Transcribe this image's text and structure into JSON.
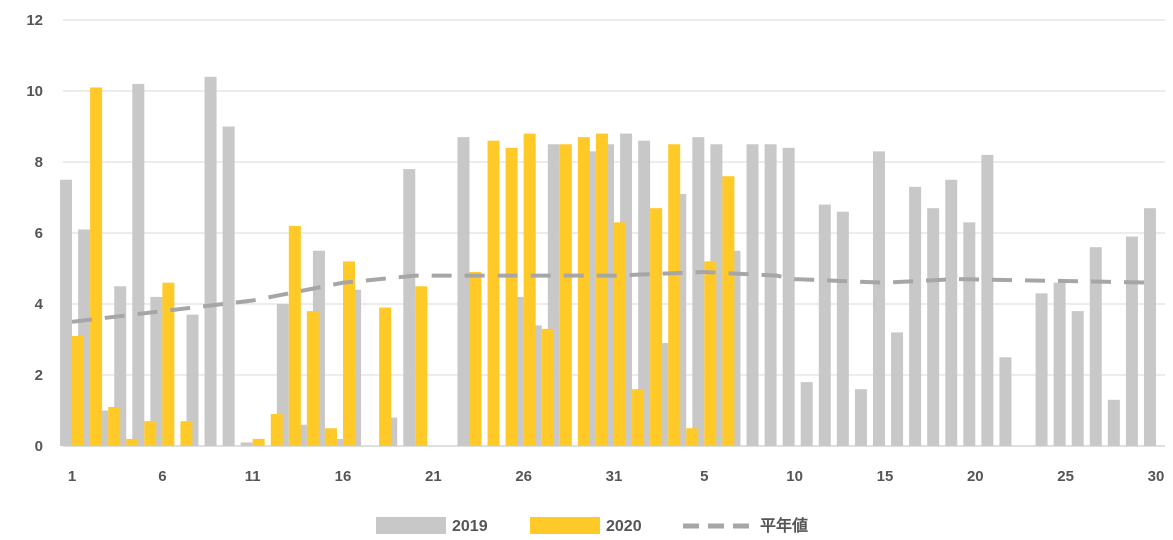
{
  "chart_data": {
    "type": "bar",
    "title": "",
    "xlabel": "",
    "ylabel": "",
    "ylim": [
      0,
      12
    ],
    "yticks": [
      0,
      2,
      4,
      6,
      8,
      10,
      12
    ],
    "grid": true,
    "legend_position": "bottom",
    "x_tick_labels": [
      "1",
      "6",
      "11",
      "16",
      "21",
      "26",
      "31",
      "5",
      "10",
      "15",
      "20",
      "25",
      "30"
    ],
    "x_tick_indices": [
      0,
      5,
      10,
      15,
      20,
      25,
      30,
      35,
      40,
      45,
      50,
      55,
      60
    ],
    "category_count": 61,
    "series": [
      {
        "name": "2019",
        "type": "bar",
        "color": "#c8c8c8",
        "values": [
          7.5,
          6.1,
          1.0,
          4.5,
          10.2,
          4.2,
          0,
          3.7,
          10.4,
          9.0,
          0.1,
          0,
          4.0,
          0.6,
          5.5,
          0.2,
          4.4,
          0,
          0.8,
          7.8,
          0,
          0,
          8.7,
          0,
          0,
          4.2,
          3.4,
          8.5,
          0,
          8.3,
          8.5,
          8.8,
          8.6,
          2.9,
          7.1,
          8.7,
          8.5,
          5.5,
          8.5,
          8.5,
          8.4,
          1.8,
          6.8,
          6.6,
          1.6,
          8.3,
          3.2,
          7.3,
          6.7,
          7.5,
          6.3,
          8.2,
          2.5,
          0,
          4.3,
          4.6,
          3.8,
          5.6,
          1.3,
          5.9,
          6.7
        ]
      },
      {
        "name": "2020",
        "type": "bar",
        "color": "#ffc928",
        "values": [
          3.1,
          10.1,
          1.1,
          0.2,
          0.7,
          4.6,
          0.7,
          0,
          0,
          0,
          0.2,
          0.9,
          6.2,
          3.8,
          0.5,
          5.2,
          0,
          3.9,
          0,
          4.5,
          0,
          0,
          4.9,
          8.6,
          8.4,
          8.8,
          3.3,
          8.5,
          8.7,
          8.8,
          6.3,
          1.6,
          6.7,
          8.5,
          0.5,
          5.2,
          7.6
        ]
      },
      {
        "name": "平年値",
        "type": "line",
        "style": "dashed",
        "color": "#a6a6a6",
        "points": [
          [
            0,
            3.5
          ],
          [
            10,
            4.1
          ],
          [
            15,
            4.6
          ],
          [
            19,
            4.8
          ],
          [
            30,
            4.8
          ],
          [
            35,
            4.9
          ],
          [
            39,
            4.8
          ],
          [
            40,
            4.7
          ],
          [
            45,
            4.6
          ],
          [
            49,
            4.7
          ],
          [
            60,
            4.6
          ]
        ]
      }
    ]
  }
}
